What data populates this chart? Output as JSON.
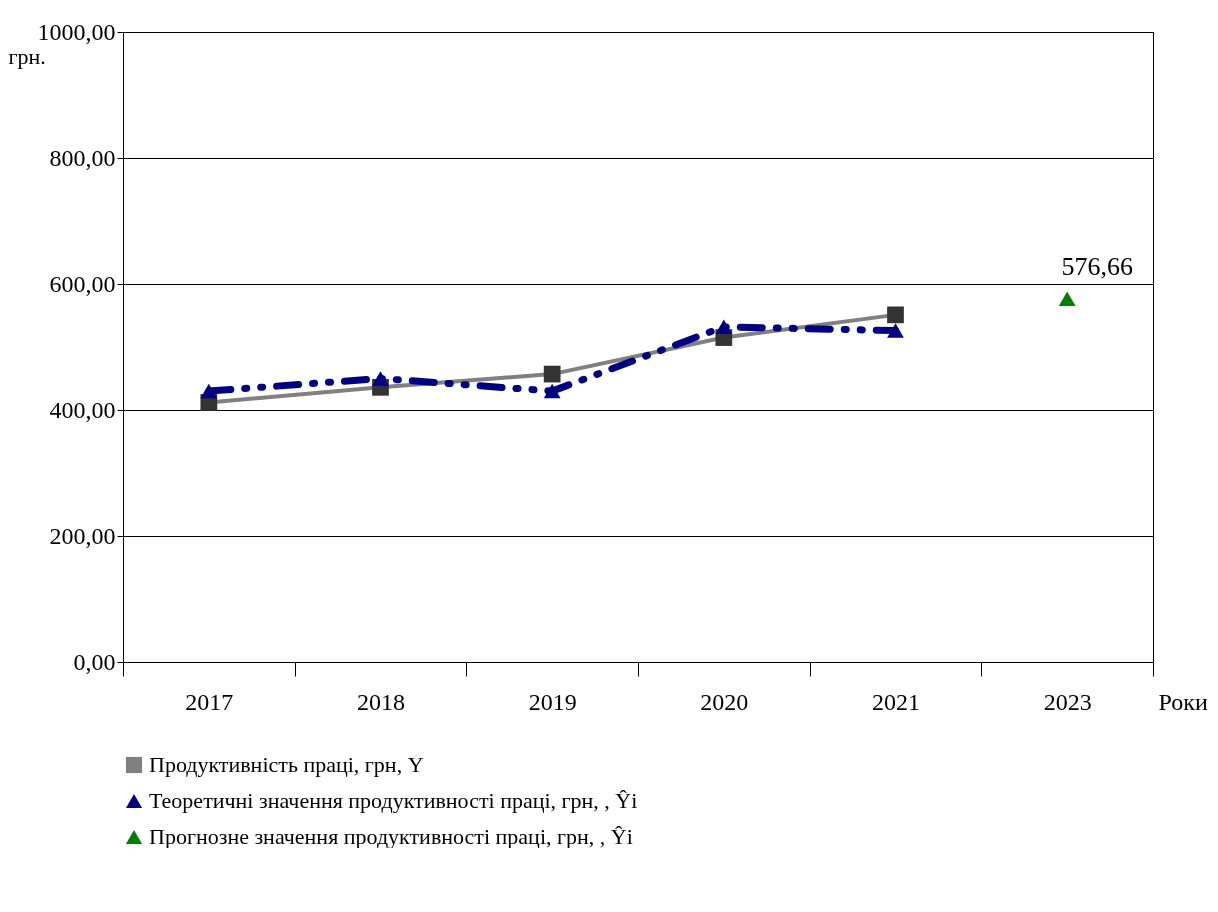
{
  "chart_data": {
    "type": "line",
    "xlabel": "Роки",
    "ylabel": "грн.",
    "categories": [
      "2017",
      "2018",
      "2019",
      "2020",
      "2021",
      "2023"
    ],
    "ylim": [
      0,
      1000
    ],
    "yticks": [
      {
        "value": 0,
        "label": "0,00"
      },
      {
        "value": 200,
        "label": "200,00"
      },
      {
        "value": 400,
        "label": "400,00"
      },
      {
        "value": 600,
        "label": "600,00"
      },
      {
        "value": 800,
        "label": "800,00"
      },
      {
        "value": 1000,
        "label": "1000,00"
      }
    ],
    "grid": "y",
    "legend": "bottom",
    "series": [
      {
        "name": "Продуктивність праці, грн, Y",
        "color": "#808080",
        "marker": "square",
        "line_style": "solid",
        "values": [
          412,
          436,
          457,
          515,
          551,
          null
        ]
      },
      {
        "name": "Теоретичні значення продуктивності праці, грн, , Ŷi",
        "color": "#000080",
        "marker": "triangle",
        "line_style": "dashed",
        "values": [
          430,
          450,
          430,
          532,
          526,
          null
        ]
      },
      {
        "name": "Прогнозне значення продуктивності праці, грн, , Ŷi",
        "color": "#008000",
        "marker": "triangle",
        "line_style": "solid",
        "values": [
          null,
          null,
          null,
          null,
          null,
          576.66
        ],
        "value_labels": [
          null,
          null,
          null,
          null,
          null,
          "576,66"
        ]
      }
    ]
  }
}
